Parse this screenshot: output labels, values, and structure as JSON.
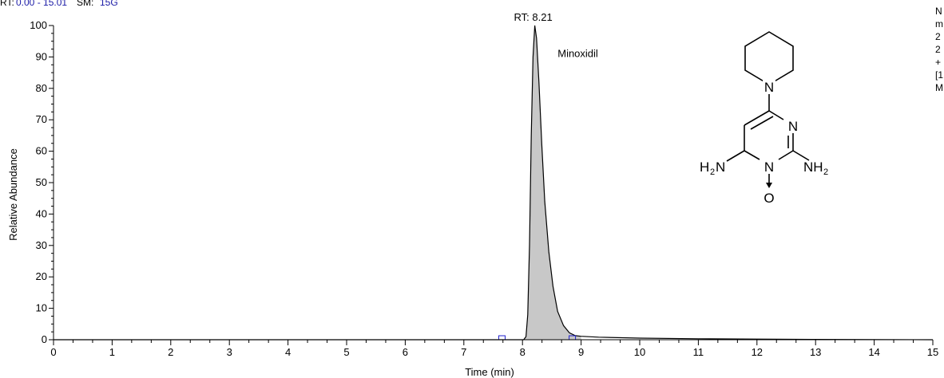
{
  "header": {
    "rt_label": "RT:",
    "rt_range": "0.00 - 15.01",
    "sm_label": "SM:",
    "sm_value": "15G"
  },
  "side_text": [
    "N",
    "m",
    "2",
    "2",
    "+",
    "[1",
    "M"
  ],
  "chart_data": {
    "type": "line",
    "title": "",
    "xlabel": "Time (min)",
    "ylabel": "Relative Abundance",
    "xlim": [
      0,
      15
    ],
    "ylim": [
      0,
      100
    ],
    "x_ticks": [
      0,
      1,
      2,
      3,
      4,
      5,
      6,
      7,
      8,
      9,
      10,
      11,
      12,
      13,
      14,
      15
    ],
    "y_ticks": [
      0,
      10,
      20,
      30,
      40,
      50,
      60,
      70,
      80,
      90,
      100
    ],
    "grid": false,
    "series": [
      {
        "filled": true,
        "points": [
          [
            0,
            0
          ],
          [
            7.6,
            0
          ],
          [
            8.02,
            0
          ],
          [
            8.06,
            1
          ],
          [
            8.09,
            8
          ],
          [
            8.12,
            30
          ],
          [
            8.15,
            65
          ],
          [
            8.18,
            90
          ],
          [
            8.21,
            100
          ],
          [
            8.24,
            96
          ],
          [
            8.28,
            82
          ],
          [
            8.33,
            62
          ],
          [
            8.38,
            44
          ],
          [
            8.45,
            28
          ],
          [
            8.52,
            17
          ],
          [
            8.6,
            9
          ],
          [
            8.7,
            4.5
          ],
          [
            8.8,
            2.2
          ],
          [
            8.9,
            1.3
          ],
          [
            9.0,
            1.1
          ],
          [
            9.3,
            0.8
          ],
          [
            10,
            0.5
          ],
          [
            11,
            0.3
          ],
          [
            12,
            0.2
          ],
          [
            13,
            0.1
          ],
          [
            15,
            0
          ]
        ]
      }
    ],
    "annotations": [
      {
        "text": "RT: 8.21",
        "x": 8.21,
        "y": 100
      },
      {
        "text": "Minoxidil",
        "x": 8.6,
        "y": 94
      }
    ],
    "baseline_markers": [
      7.65,
      8.85
    ]
  },
  "structure": {
    "atoms": {
      "n_top": "N",
      "n_ring_right": "N",
      "n_ring_bottom": "N",
      "h2n_left": "H",
      "h2n_left_sub": "2",
      "h2n_left_n": "N",
      "nh2_right": "NH",
      "nh2_right_sub": "2",
      "oxygen": "O"
    }
  }
}
